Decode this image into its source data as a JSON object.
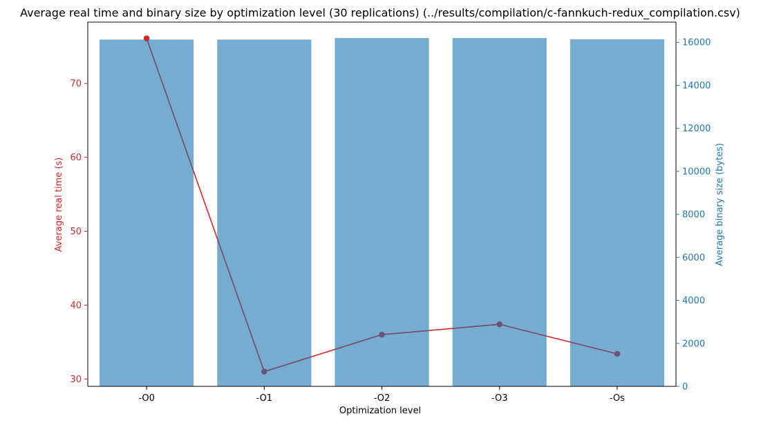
{
  "chart_data": {
    "type": "bar",
    "title": "Average real time and binary size by optimization level (30 replications) (../results/compilation/c-fannkuch-redux_compilation.csv)",
    "xlabel": "Optimization level",
    "categories": [
      "-O0",
      "-O1",
      "-O2",
      "-O3",
      "-Os"
    ],
    "series": [
      {
        "name": "Average binary size (bytes)",
        "type": "bar",
        "axis": "right",
        "values": [
          16128,
          16128,
          16200,
          16200,
          16144
        ]
      },
      {
        "name": "Average real time (s)",
        "type": "line",
        "axis": "left",
        "values": [
          76.1,
          31.0,
          36.0,
          37.4,
          33.4
        ]
      }
    ],
    "ylabel_left": "Average real time (s)",
    "ylabel_right": "Average binary size (bytes)",
    "ylim_left": [
      29.0,
      78.3
    ],
    "ylim_right": [
      0,
      16940
    ],
    "yticks_left": [
      "30",
      "40",
      "50",
      "60",
      "70"
    ],
    "yticks_right": [
      "0",
      "2000",
      "4000",
      "6000",
      "8000",
      "10000",
      "12000",
      "14000",
      "16000"
    ],
    "grid": false,
    "colors": {
      "bar": "#76acd0",
      "line_red": "#d62728",
      "line_overlap": "#6a5479",
      "marker_overlap": "#6a5479",
      "left_axis": "#d62728",
      "right_axis": "#1f77b4"
    }
  }
}
